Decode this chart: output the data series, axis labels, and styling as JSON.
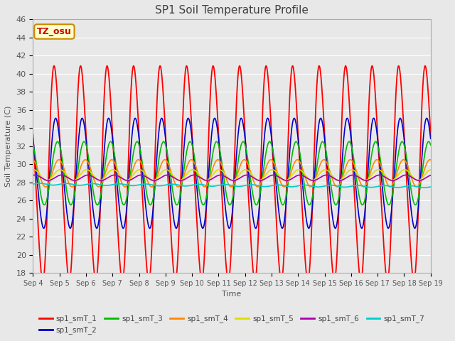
{
  "title": "SP1 Soil Temperature Profile",
  "xlabel": "Time",
  "ylabel": "Soil Temperature (C)",
  "ylim": [
    18,
    46
  ],
  "xlim": [
    0,
    15
  ],
  "x_tick_labels": [
    "Sep 4",
    "Sep 5",
    "Sep 6",
    "Sep 7",
    "Sep 8",
    "Sep 9",
    "Sep 10",
    "Sep 11",
    "Sep 12",
    "Sep 13",
    "Sep 14",
    "Sep 15",
    "Sep 16",
    "Sep 17",
    "Sep 18",
    "Sep 19"
  ],
  "series_colors": [
    "#ff0000",
    "#0000cc",
    "#00bb00",
    "#ff8800",
    "#dddd00",
    "#aa00aa",
    "#00cccc"
  ],
  "series_labels": [
    "sp1_smT_1",
    "sp1_smT_2",
    "sp1_smT_3",
    "sp1_smT_4",
    "sp1_smT_5",
    "sp1_smT_6",
    "sp1_smT_7"
  ],
  "background_color": "#e8e8e8",
  "plot_bg_color": "#e8e8e8",
  "annotation_text": "TZ_osu",
  "annotation_bg": "#ffffcc",
  "annotation_border": "#cc8800",
  "title_color": "#404040",
  "axis_label_color": "#555555",
  "tick_label_color": "#555555",
  "grid_color": "#ffffff",
  "legend_text_color": "#404040"
}
